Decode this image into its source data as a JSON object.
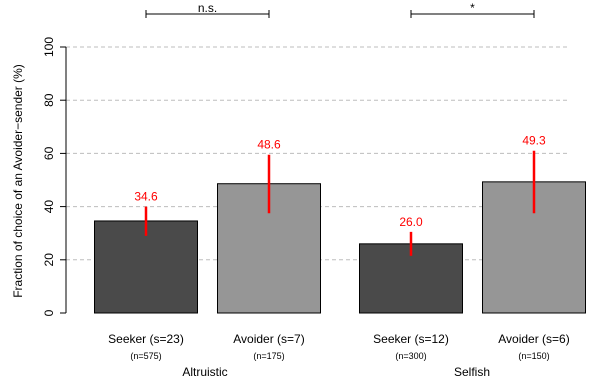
{
  "chart_data": {
    "type": "bar",
    "ylabel": "Fraction of choice of an Avoider−sender (%)",
    "ylim": [
      0,
      100
    ],
    "yticks": [
      0,
      20,
      40,
      60,
      80,
      100
    ],
    "grid": "horizontal-dashed",
    "groups": [
      {
        "label": "Altruistic",
        "bars": [
          {
            "category": "Seeker (s=23)",
            "n_label": "(n=575)",
            "value": 34.6,
            "value_label": "34.6",
            "err_low": 29.0,
            "err_high": 40.0,
            "kind": "seeker"
          },
          {
            "category": "Avoider (s=7)",
            "n_label": "(n=175)",
            "value": 48.6,
            "value_label": "48.6",
            "err_low": 37.5,
            "err_high": 59.5,
            "kind": "avoider"
          }
        ],
        "significance": "n.s."
      },
      {
        "label": "Selfish",
        "bars": [
          {
            "category": "Seeker (s=12)",
            "n_label": "(n=300)",
            "value": 26.0,
            "value_label": "26.0",
            "err_low": 21.5,
            "err_high": 30.5,
            "kind": "seeker"
          },
          {
            "category": "Avoider (s=6)",
            "n_label": "(n=150)",
            "value": 49.3,
            "value_label": "49.3",
            "err_low": 37.5,
            "err_high": 61.0,
            "kind": "avoider"
          }
        ],
        "significance": "*"
      }
    ],
    "colors": {
      "seeker": "#4a4a4a",
      "avoider": "#969696",
      "error_bar": "#ff0000",
      "value_label": "#ff0000",
      "grid": "#bdbdbd"
    }
  }
}
